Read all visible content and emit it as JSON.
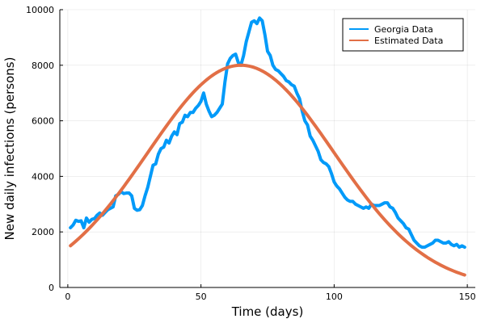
{
  "chart_data": {
    "type": "line",
    "xlabel": "Time (days)",
    "ylabel": "New daily infections (persons)",
    "xlim": [
      -3,
      153
    ],
    "ylim": [
      0,
      10000
    ],
    "xticks": [
      0,
      50,
      100,
      150
    ],
    "yticks": [
      0,
      2000,
      4000,
      6000,
      8000,
      10000
    ],
    "grid": true,
    "legend_position": "top-right",
    "series": [
      {
        "name": "Georgia Data",
        "color": "#009af9",
        "x": [
          1,
          2,
          3,
          4,
          5,
          6,
          7,
          8,
          9,
          10,
          11,
          12,
          13,
          14,
          15,
          16,
          17,
          18,
          19,
          20,
          21,
          22,
          23,
          24,
          25,
          26,
          27,
          28,
          29,
          30,
          31,
          32,
          33,
          34,
          35,
          36,
          37,
          38,
          39,
          40,
          41,
          42,
          43,
          44,
          45,
          46,
          47,
          48,
          49,
          50,
          51,
          52,
          53,
          54,
          55,
          56,
          57,
          58,
          59,
          60,
          61,
          62,
          63,
          64,
          65,
          66,
          67,
          68,
          69,
          70,
          71,
          72,
          73,
          74,
          75,
          76,
          77,
          78,
          79,
          80,
          81,
          82,
          83,
          84,
          85,
          86,
          87,
          88,
          89,
          90,
          91,
          92,
          93,
          94,
          95,
          96,
          97,
          98,
          99,
          100,
          101,
          102,
          103,
          104,
          105,
          106,
          107,
          108,
          109,
          110,
          111,
          112,
          113,
          114,
          115,
          116,
          117,
          118,
          119,
          120,
          121,
          122,
          123,
          124,
          125,
          126,
          127,
          128,
          129,
          130,
          131,
          132,
          133,
          134,
          135,
          136,
          137,
          138,
          139,
          140,
          141,
          142,
          143,
          144,
          145,
          146,
          147,
          148,
          149
        ],
        "y": [
          2150,
          2250,
          2420,
          2380,
          2400,
          2150,
          2500,
          2350,
          2450,
          2480,
          2600,
          2680,
          2600,
          2700,
          2800,
          2850,
          2900,
          3300,
          3350,
          3450,
          3380,
          3400,
          3400,
          3300,
          2850,
          2780,
          2800,
          2950,
          3300,
          3600,
          4000,
          4400,
          4450,
          4800,
          5000,
          5050,
          5300,
          5200,
          5450,
          5600,
          5500,
          5900,
          5950,
          6200,
          6150,
          6300,
          6300,
          6450,
          6550,
          6700,
          7000,
          6600,
          6350,
          6150,
          6200,
          6300,
          6450,
          6600,
          7400,
          8050,
          8250,
          8350,
          8400,
          8100,
          8000,
          8350,
          8850,
          9200,
          9550,
          9600,
          9500,
          9700,
          9600,
          9100,
          8500,
          8350,
          8000,
          7850,
          7800,
          7700,
          7600,
          7450,
          7400,
          7300,
          7250,
          7000,
          6800,
          6350,
          6000,
          5850,
          5450,
          5300,
          5100,
          4900,
          4600,
          4500,
          4450,
          4350,
          4100,
          3800,
          3650,
          3550,
          3400,
          3250,
          3150,
          3100,
          3100,
          3000,
          2950,
          2900,
          2850,
          2900,
          2850,
          3000,
          2950,
          2950,
          2950,
          3000,
          3050,
          3050,
          2900,
          2850,
          2700,
          2500,
          2400,
          2300,
          2150,
          2100,
          1900,
          1700,
          1600,
          1500,
          1450,
          1450,
          1500,
          1550,
          1600,
          1700,
          1700,
          1650,
          1600,
          1600,
          1650,
          1550,
          1500,
          1550,
          1450,
          1500,
          1450
        ]
      },
      {
        "name": "Estimated Data",
        "color": "#e26f46",
        "model": {
          "peak": 8000,
          "center": 65,
          "sigma": 35
        }
      }
    ]
  }
}
